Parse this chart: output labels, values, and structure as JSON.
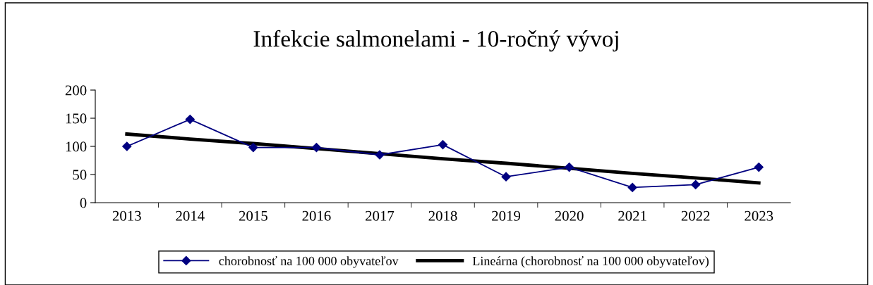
{
  "chart_data": {
    "type": "line",
    "title": "Infekcie salmonelami - 10-ročný vývoj",
    "categories": [
      "2013",
      "2014",
      "2015",
      "2016",
      "2017",
      "2018",
      "2019",
      "2020",
      "2021",
      "2022",
      "2023"
    ],
    "series": [
      {
        "name": "chorobnosť na 100 000 obyvateľov",
        "color": "#000080",
        "marker": "diamond",
        "line_style": "solid",
        "values": [
          100,
          148,
          98,
          98,
          85,
          103,
          46,
          63,
          27,
          32,
          63
        ]
      },
      {
        "name": "Lineárna (chorobnosť na 100 000 obyvateľov)",
        "color": "#000000",
        "marker": "none",
        "line_style": "solid",
        "values": [
          122,
          113,
          105,
          96,
          87,
          78,
          70,
          61,
          52,
          44,
          35
        ]
      }
    ],
    "ylim": [
      0,
      200
    ],
    "yticks": [
      0,
      50,
      100,
      150,
      200
    ],
    "grid": false,
    "legend": "bottom"
  }
}
